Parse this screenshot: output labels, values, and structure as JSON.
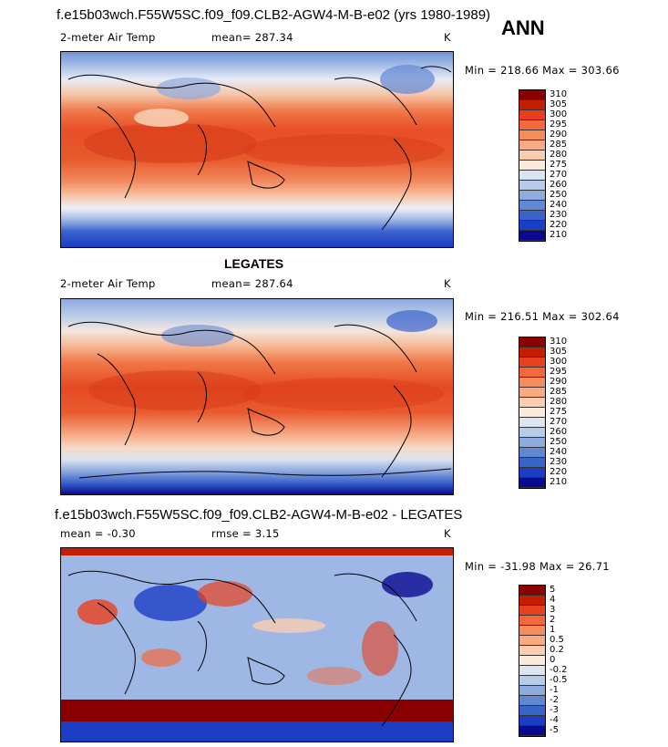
{
  "header": {
    "title": "f.e15b03wch.F55W5SC.f09_f09.CLB2-AGW4-M-B-e02 (yrs 1980-1989)",
    "season": "ANN"
  },
  "panels": [
    {
      "variable": "2-meter Air Temp",
      "mean": "mean= 287.34",
      "units": "K",
      "minmax": "Min = 218.66 Max = 303.66",
      "colorbar_levels": [
        "310",
        "305",
        "300",
        "295",
        "290",
        "285",
        "280",
        "275",
        "270",
        "260",
        "250",
        "240",
        "230",
        "220",
        "210"
      ],
      "colorbar_colors": [
        "#8a0000",
        "#c41e00",
        "#e8401c",
        "#f26a3c",
        "#f68c5c",
        "#f8ab82",
        "#f8cdb0",
        "#fbe9dc",
        "#dbe4f2",
        "#b7cae8",
        "#8faadf",
        "#6288d4",
        "#3a63cc",
        "#1b3ec4",
        "#0a0a90"
      ]
    },
    {
      "heading": "LEGATES",
      "variable": "2-meter Air Temp",
      "mean": "mean= 287.64",
      "units": "K",
      "minmax": "Min = 216.51 Max = 302.64",
      "colorbar_levels": [
        "310",
        "305",
        "300",
        "295",
        "290",
        "285",
        "280",
        "275",
        "270",
        "260",
        "250",
        "240",
        "230",
        "220",
        "210"
      ],
      "colorbar_colors": [
        "#8a0000",
        "#c41e00",
        "#e8401c",
        "#f26a3c",
        "#f68c5c",
        "#f8ab82",
        "#f8cdb0",
        "#fbe9dc",
        "#dbe4f2",
        "#b7cae8",
        "#8faadf",
        "#6288d4",
        "#3a63cc",
        "#1b3ec4",
        "#0a0a90"
      ]
    },
    {
      "heading": "f.e15b03wch.F55W5SC.f09_f09.CLB2-AGW4-M-B-e02 - LEGATES",
      "mean": "mean =  -0.30",
      "rmse": "rmse =    3.15",
      "units": "K",
      "minmax": "Min = -31.98 Max =  26.71",
      "colorbar_levels": [
        "5",
        "4",
        "3",
        "2",
        "1",
        "0.5",
        "0.2",
        "0",
        "-0.2",
        "-0.5",
        "-1",
        "-2",
        "-3",
        "-4",
        "-5"
      ],
      "colorbar_colors": [
        "#8a0000",
        "#c41e00",
        "#e8401c",
        "#f26a3c",
        "#f68c5c",
        "#f8ab82",
        "#f8cdb0",
        "#fbe9dc",
        "#dbe4f2",
        "#b7cae8",
        "#8faadf",
        "#6288d4",
        "#3a63cc",
        "#1b3ec4",
        "#0a0a90"
      ]
    }
  ]
}
